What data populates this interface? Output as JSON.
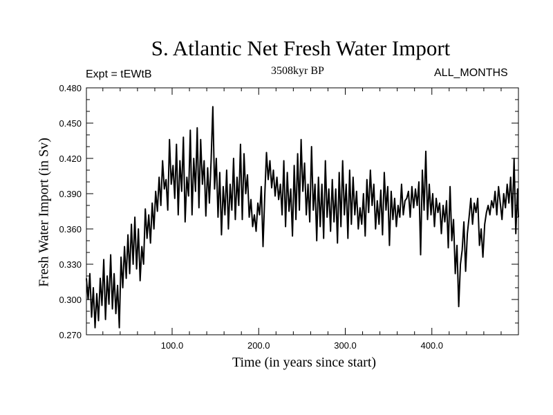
{
  "chart_data": {
    "type": "line",
    "title": "S. Atlantic Net Fresh Water Import",
    "expt_label": "Expt = tEWtB",
    "period_label": "3508kyr BP",
    "months_label": "ALL_MONTHS",
    "xlabel": "Time (in years since start)",
    "ylabel": "Fresh Water Import (in Sv)",
    "xlim": [
      1,
      500
    ],
    "ylim": [
      0.27,
      0.48
    ],
    "x_ticks": [
      100,
      200,
      300,
      400
    ],
    "x_tick_labels": [
      "100.0",
      "200.0",
      "300.0",
      "400.0"
    ],
    "y_ticks": [
      0.27,
      0.3,
      0.33,
      0.36,
      0.39,
      0.42,
      0.45,
      0.48
    ],
    "y_tick_labels": [
      "0.270",
      "0.300",
      "0.330",
      "0.360",
      "0.390",
      "0.420",
      "0.450",
      "0.480"
    ],
    "grid": false,
    "series": [
      {
        "name": "Net Fresh Water Import",
        "points": [
          [
            1,
            0.318
          ],
          [
            3,
            0.3
          ],
          [
            5,
            0.322
          ],
          [
            7,
            0.285
          ],
          [
            9,
            0.31
          ],
          [
            11,
            0.276
          ],
          [
            13,
            0.305
          ],
          [
            15,
            0.282
          ],
          [
            17,
            0.318
          ],
          [
            19,
            0.295
          ],
          [
            21,
            0.334
          ],
          [
            23,
            0.283
          ],
          [
            25,
            0.32
          ],
          [
            27,
            0.296
          ],
          [
            29,
            0.338
          ],
          [
            31,
            0.292
          ],
          [
            33,
            0.322
          ],
          [
            35,
            0.288
          ],
          [
            37,
            0.312
          ],
          [
            39,
            0.276
          ],
          [
            41,
            0.336
          ],
          [
            43,
            0.31
          ],
          [
            45,
            0.345
          ],
          [
            47,
            0.318
          ],
          [
            49,
            0.355
          ],
          [
            51,
            0.322
          ],
          [
            53,
            0.364
          ],
          [
            55,
            0.33
          ],
          [
            57,
            0.37
          ],
          [
            59,
            0.326
          ],
          [
            61,
            0.36
          ],
          [
            63,
            0.316
          ],
          [
            65,
            0.345
          ],
          [
            67,
            0.33
          ],
          [
            69,
            0.377
          ],
          [
            71,
            0.352
          ],
          [
            73,
            0.372
          ],
          [
            75,
            0.348
          ],
          [
            77,
            0.382
          ],
          [
            79,
            0.36
          ],
          [
            81,
            0.392
          ],
          [
            83,
            0.375
          ],
          [
            85,
            0.404
          ],
          [
            87,
            0.38
          ],
          [
            89,
            0.418
          ],
          [
            91,
            0.394
          ],
          [
            93,
            0.402
          ],
          [
            95,
            0.376
          ],
          [
            97,
            0.436
          ],
          [
            99,
            0.398
          ],
          [
            101,
            0.414
          ],
          [
            103,
            0.386
          ],
          [
            105,
            0.432
          ],
          [
            107,
            0.372
          ],
          [
            109,
            0.418
          ],
          [
            111,
            0.392
          ],
          [
            113,
            0.438
          ],
          [
            115,
            0.366
          ],
          [
            117,
            0.404
          ],
          [
            119,
            0.388
          ],
          [
            121,
            0.444
          ],
          [
            123,
            0.372
          ],
          [
            125,
            0.42
          ],
          [
            127,
            0.392
          ],
          [
            129,
            0.446
          ],
          [
            131,
            0.378
          ],
          [
            133,
            0.436
          ],
          [
            135,
            0.398
          ],
          [
            137,
            0.418
          ],
          [
            139,
            0.371
          ],
          [
            141,
            0.412
          ],
          [
            143,
            0.382
          ],
          [
            145,
            0.418
          ],
          [
            147,
            0.464
          ],
          [
            149,
            0.394
          ],
          [
            151,
            0.42
          ],
          [
            153,
            0.37
          ],
          [
            155,
            0.408
          ],
          [
            157,
            0.355
          ],
          [
            159,
            0.396
          ],
          [
            161,
            0.372
          ],
          [
            163,
            0.41
          ],
          [
            165,
            0.36
          ],
          [
            167,
            0.398
          ],
          [
            169,
            0.376
          ],
          [
            171,
            0.42
          ],
          [
            173,
            0.368
          ],
          [
            175,
            0.404
          ],
          [
            177,
            0.38
          ],
          [
            179,
            0.432
          ],
          [
            181,
            0.368
          ],
          [
            183,
            0.424
          ],
          [
            185,
            0.39
          ],
          [
            187,
            0.406
          ],
          [
            189,
            0.37
          ],
          [
            191,
            0.385
          ],
          [
            193,
            0.362
          ],
          [
            195,
            0.372
          ],
          [
            197,
            0.358
          ],
          [
            199,
            0.382
          ],
          [
            201,
            0.372
          ],
          [
            203,
            0.396
          ],
          [
            205,
            0.345
          ],
          [
            207,
            0.388
          ],
          [
            209,
            0.425
          ],
          [
            211,
            0.402
          ],
          [
            213,
            0.418
          ],
          [
            215,
            0.395
          ],
          [
            217,
            0.41
          ],
          [
            219,
            0.388
          ],
          [
            221,
            0.404
          ],
          [
            223,
            0.385
          ],
          [
            225,
            0.398
          ],
          [
            227,
            0.372
          ],
          [
            229,
            0.418
          ],
          [
            231,
            0.362
          ],
          [
            233,
            0.408
          ],
          [
            235,
            0.375
          ],
          [
            237,
            0.394
          ],
          [
            239,
            0.354
          ],
          [
            241,
            0.414
          ],
          [
            243,
            0.368
          ],
          [
            245,
            0.424
          ],
          [
            247,
            0.376
          ],
          [
            249,
            0.436
          ],
          [
            251,
            0.392
          ],
          [
            253,
            0.416
          ],
          [
            255,
            0.372
          ],
          [
            257,
            0.398
          ],
          [
            259,
            0.366
          ],
          [
            261,
            0.43
          ],
          [
            263,
            0.376
          ],
          [
            265,
            0.398
          ],
          [
            267,
            0.35
          ],
          [
            269,
            0.404
          ],
          [
            271,
            0.362
          ],
          [
            273,
            0.398
          ],
          [
            275,
            0.352
          ],
          [
            277,
            0.418
          ],
          [
            279,
            0.37
          ],
          [
            281,
            0.394
          ],
          [
            283,
            0.358
          ],
          [
            285,
            0.402
          ],
          [
            287,
            0.366
          ],
          [
            289,
            0.394
          ],
          [
            291,
            0.348
          ],
          [
            293,
            0.408
          ],
          [
            295,
            0.362
          ],
          [
            297,
            0.418
          ],
          [
            299,
            0.372
          ],
          [
            301,
            0.398
          ],
          [
            303,
            0.352
          ],
          [
            305,
            0.41
          ],
          [
            307,
            0.364
          ],
          [
            309,
            0.404
          ],
          [
            311,
            0.372
          ],
          [
            313,
            0.392
          ],
          [
            315,
            0.36
          ],
          [
            317,
            0.378
          ],
          [
            319,
            0.364
          ],
          [
            321,
            0.39
          ],
          [
            323,
            0.354
          ],
          [
            325,
            0.402
          ],
          [
            327,
            0.374
          ],
          [
            329,
            0.41
          ],
          [
            331,
            0.38
          ],
          [
            333,
            0.398
          ],
          [
            335,
            0.36
          ],
          [
            337,
            0.384
          ],
          [
            339,
            0.364
          ],
          [
            341,
            0.393
          ],
          [
            343,
            0.355
          ],
          [
            345,
            0.408
          ],
          [
            347,
            0.376
          ],
          [
            349,
            0.396
          ],
          [
            351,
            0.346
          ],
          [
            353,
            0.392
          ],
          [
            355,
            0.368
          ],
          [
            357,
            0.386
          ],
          [
            359,
            0.362
          ],
          [
            361,
            0.38
          ],
          [
            363,
            0.37
          ],
          [
            365,
            0.398
          ],
          [
            367,
            0.372
          ],
          [
            369,
            0.384
          ],
          [
            371,
            0.386
          ],
          [
            373,
            0.392
          ],
          [
            375,
            0.37
          ],
          [
            377,
            0.396
          ],
          [
            379,
            0.378
          ],
          [
            381,
            0.394
          ],
          [
            383,
            0.38
          ],
          [
            385,
            0.4
          ],
          [
            387,
            0.338
          ],
          [
            389,
            0.41
          ],
          [
            391,
            0.376
          ],
          [
            393,
            0.426
          ],
          [
            395,
            0.368
          ],
          [
            397,
            0.398
          ],
          [
            399,
            0.372
          ],
          [
            401,
            0.39
          ],
          [
            403,
            0.362
          ],
          [
            405,
            0.386
          ],
          [
            407,
            0.374
          ],
          [
            409,
            0.382
          ],
          [
            411,
            0.356
          ],
          [
            413,
            0.38
          ],
          [
            415,
            0.366
          ],
          [
            417,
            0.384
          ],
          [
            419,
            0.344
          ],
          [
            421,
            0.396
          ],
          [
            423,
            0.35
          ],
          [
            425,
            0.368
          ],
          [
            427,
            0.322
          ],
          [
            429,
            0.346
          ],
          [
            431,
            0.294
          ],
          [
            433,
            0.33
          ],
          [
            435,
            0.342
          ],
          [
            437,
            0.366
          ],
          [
            439,
            0.324
          ],
          [
            441,
            0.356
          ],
          [
            443,
            0.37
          ],
          [
            445,
            0.386
          ],
          [
            447,
            0.364
          ],
          [
            449,
            0.382
          ],
          [
            451,
            0.374
          ],
          [
            453,
            0.386
          ],
          [
            455,
            0.346
          ],
          [
            457,
            0.36
          ],
          [
            459,
            0.336
          ],
          [
            461,
            0.364
          ],
          [
            463,
            0.374
          ],
          [
            465,
            0.38
          ],
          [
            467,
            0.372
          ],
          [
            469,
            0.384
          ],
          [
            471,
            0.378
          ],
          [
            473,
            0.392
          ],
          [
            475,
            0.372
          ],
          [
            477,
            0.396
          ],
          [
            479,
            0.382
          ],
          [
            481,
            0.368
          ],
          [
            483,
            0.39
          ],
          [
            485,
            0.378
          ],
          [
            487,
            0.398
          ],
          [
            489,
            0.382
          ],
          [
            491,
            0.404
          ],
          [
            493,
            0.37
          ],
          [
            495,
            0.42
          ],
          [
            497,
            0.356
          ],
          [
            499,
            0.394
          ],
          [
            500,
            0.37
          ]
        ]
      }
    ]
  }
}
